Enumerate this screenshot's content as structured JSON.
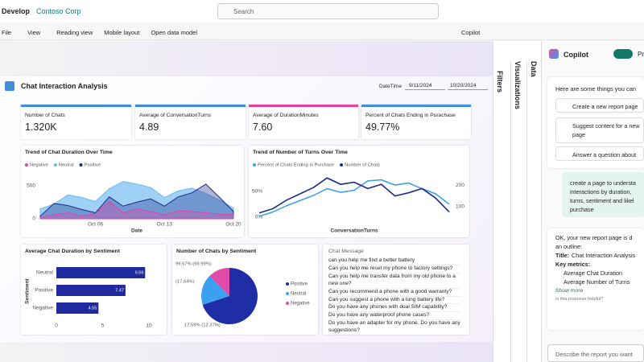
{
  "topbar": {
    "app": "Develop",
    "workspace": "Contoso Corp",
    "search": "Search"
  },
  "menu": {
    "items": [
      "File",
      "View",
      "Reading view",
      "Mobile layout",
      "Open data model"
    ],
    "copilot": "Copilot"
  },
  "report": {
    "title": "Chat Interaction Analysis",
    "date_label": "DateTime",
    "date_from": "9/11/2024",
    "date_to": "10/20/2024",
    "cards": [
      {
        "label": "Number of Chats",
        "value": "1.320K"
      },
      {
        "label": "Average of ConversationTurns",
        "value": "4.89"
      },
      {
        "label": "Average of DurationMinutes",
        "value": "7.60"
      },
      {
        "label": "Percent of Chats Ending in Purachase",
        "value": "49.77%"
      }
    ]
  },
  "chart_data": [
    {
      "type": "area",
      "title": "Trend of Chat Duration Over Time",
      "x": [
        null,
        null,
        null,
        null,
        "Oct 06",
        null,
        null,
        null,
        null,
        "Oct 13",
        null,
        null,
        null,
        null,
        "Oct 20"
      ],
      "xlabel": "Date",
      "ylim": [
        0,
        700
      ],
      "yticks": [
        0,
        500
      ],
      "series": [
        {
          "name": "Negative",
          "color": "#e044a7",
          "values": [
            20,
            60,
            90,
            40,
            80,
            260,
            90,
            150,
            110,
            60,
            120,
            110,
            90,
            70,
            60
          ]
        },
        {
          "name": "Neutral",
          "color": "#6cb8f2",
          "values": [
            150,
            220,
            360,
            320,
            260,
            450,
            560,
            520,
            470,
            320,
            420,
            460,
            380,
            280,
            160
          ]
        },
        {
          "name": "Positive",
          "color": "#1e2a8a",
          "values": [
            40,
            230,
            200,
            140,
            90,
            330,
            190,
            250,
            300,
            190,
            330,
            390,
            520,
            320,
            110
          ]
        }
      ]
    },
    {
      "type": "line",
      "title": "Trend of Number of Turns Over Time",
      "x": [
        null,
        null,
        null,
        null,
        null,
        null,
        null,
        null,
        null,
        null,
        null,
        null,
        null,
        null,
        null
      ],
      "xlabel": "ConversationTurns",
      "ylim": [
        0,
        90
      ],
      "yticks": [
        {
          "value": 0,
          "label": "0%"
        },
        {
          "value": 50,
          "label": "50%"
        }
      ],
      "y2lim": [
        50,
        270
      ],
      "y2ticks": [
        100,
        200
      ],
      "series": [
        {
          "name": "Percent of Chats Ending in Purchase",
          "color": "#3fa0ea",
          "values": [
            2,
            10,
            22,
            32,
            42,
            55,
            48,
            52,
            70,
            72,
            62,
            66,
            55,
            45,
            25
          ]
        },
        {
          "name": "Number of Chats",
          "color": "#1e2a8a",
          "axis": "y2",
          "values": [
            70,
            90,
            130,
            160,
            190,
            235,
            205,
            215,
            185,
            205,
            150,
            165,
            185,
            140,
            75
          ]
        }
      ]
    },
    {
      "type": "bar",
      "orientation": "horizontal",
      "title": "Average Chat Duration by Sentiment",
      "ylabel": "Sentiment",
      "categories": [
        "Neutral",
        "Positive",
        "Negative"
      ],
      "values": [
        9.59,
        7.47,
        4.55
      ],
      "color": "#1f2a9e",
      "xlim": [
        0,
        10
      ],
      "xticks": [
        0,
        5,
        10
      ]
    },
    {
      "type": "pie",
      "title": "Number of Chats by Sentiment",
      "categories": [
        "Positive",
        "Neutral",
        "Negative"
      ],
      "values": [
        69.99,
        17.64,
        12.37
      ],
      "value_labels": [
        "99.57% (69.99%)",
        "(17.64%)",
        "17.59% (12.37%)"
      ],
      "colors": [
        "#1f2ea6",
        "#3aa0ef",
        "#e04aa9"
      ]
    }
  ],
  "table": {
    "header": "Chat Message",
    "rows": [
      "can you help me find a better battery",
      "Can you help me reset my phone to factory settings?",
      "Can you help me transfer data from my old phone to a new one?",
      "Can you recommend a phone with a good warranty?",
      "Can you suggest a phone with a long battery life?",
      "Do you have any phones with dual SIM capability?",
      "Do you have any waterproof phone cases?",
      "Do you have an adapter for my phone. Do you have any suggestions?"
    ]
  },
  "panes": {
    "filters": "Filters",
    "visualizations": "Visualizations",
    "data": "Data"
  },
  "copilot": {
    "title": "Copilot",
    "toggle": "Pr",
    "intro": "Here are some things you can",
    "suggestions": [
      "Create a new report page",
      "Suggest content for a new page",
      "Answer a question about"
    ],
    "user_message": [
      "create a page to understa",
      "interactions by duration,",
      "turns, sentiment and likel",
      "purchase"
    ],
    "response": [
      "OK, your new report page is d",
      "an outline:"
    ],
    "title_label": "Title:",
    "title_value": "Chat Interaction Analysis",
    "metrics_label": "Key metrics:",
    "metrics": [
      "Average Chat Duration",
      "Average Number of Turns"
    ],
    "show_more": "Show more",
    "feedback": "Is this response helpful?",
    "input": "Describe the report you want"
  }
}
